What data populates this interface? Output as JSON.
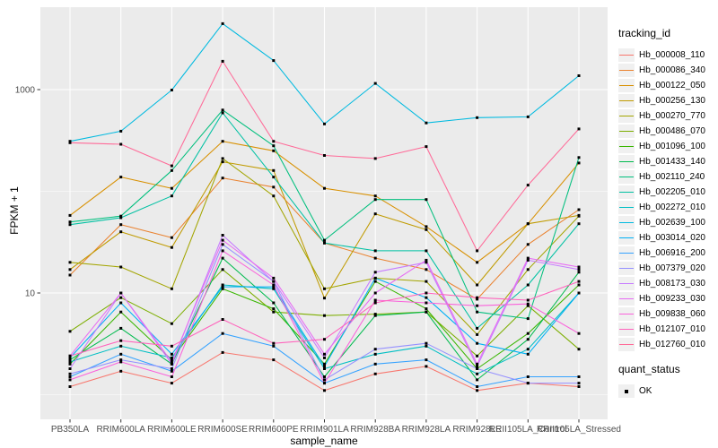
{
  "figure": {
    "background": "#ffffff",
    "panel_background": "#ebebeb",
    "grid_color": "#ffffff",
    "axis_text_color": "#4d4d4d",
    "tick_mark_color": "#333333",
    "point_color": "#000000"
  },
  "chart_data": {
    "type": "line",
    "title": "",
    "xlabel": "sample_name",
    "ylabel": "FPKM + 1",
    "y_scale": "log10",
    "y_major_ticks": [
      {
        "value": 10,
        "label": "10"
      },
      {
        "value": 1000,
        "label": "1000"
      }
    ],
    "y_minor_ticks": [
      1,
      100
    ],
    "ylim_log": [
      0.57,
      6600
    ],
    "grid": "on",
    "legend_position": "right",
    "point_shape": "filled-square",
    "categories": [
      "PB350LA",
      "RRIM600LA",
      "RRIM600LE",
      "RRIM600SE",
      "RRIM600PE",
      "RRIM901LA",
      "RRIM928BA",
      "RRIM928LA",
      "RRIM928LE",
      "RRII105LA_Control",
      "RRII105LA_Stressed"
    ],
    "series": [
      {
        "name": "Hb_000008_110",
        "color": "#F8766D",
        "values": [
          1.2,
          1.7,
          1.3,
          2.6,
          2.2,
          1.1,
          1.6,
          1.9,
          1.1,
          1.3,
          1.2
        ]
      },
      {
        "name": "Hb_000086_340",
        "color": "#EA8331",
        "values": [
          15,
          47,
          35,
          135,
          110,
          31,
          22,
          17,
          8.7,
          30,
          66
        ]
      },
      {
        "name": "Hb_000122_050",
        "color": "#D89000",
        "values": [
          58,
          138,
          107,
          310,
          250,
          107,
          90,
          45,
          20,
          48,
          190
        ]
      },
      {
        "name": "Hb_000256_130",
        "color": "#C09B00",
        "values": [
          17,
          40,
          28,
          195,
          160,
          8.9,
          60,
          42,
          12,
          48,
          58
        ]
      },
      {
        "name": "Hb_000270_770",
        "color": "#A3A500",
        "values": [
          20,
          18,
          11,
          210,
          90,
          11,
          14,
          13,
          3.9,
          17,
          57
        ]
      },
      {
        "name": "Hb_000486_070",
        "color": "#7CAE00",
        "values": [
          4.2,
          9.0,
          5.0,
          17,
          6.5,
          6.0,
          6.2,
          6.5,
          2.4,
          7.5,
          2.8
        ]
      },
      {
        "name": "Hb_001096_100",
        "color": "#39B600",
        "values": [
          2.0,
          6.5,
          2.2,
          11,
          7.0,
          2.0,
          13,
          7.0,
          1.8,
          4.0,
          12
        ]
      },
      {
        "name": "Hb_001433_140",
        "color": "#00BB4E",
        "values": [
          2.2,
          4.5,
          2.0,
          22,
          8.0,
          1.5,
          6.0,
          6.5,
          1.4,
          3.5,
          16
        ]
      },
      {
        "name": "Hb_002110_240",
        "color": "#00BF7D",
        "values": [
          50,
          57,
          160,
          630,
          280,
          33,
          83,
          83,
          6.5,
          5.6,
          215
        ]
      },
      {
        "name": "Hb_002205_010",
        "color": "#00C1A3",
        "values": [
          47,
          55,
          90,
          590,
          138,
          31,
          26,
          26,
          4.5,
          12,
          48
        ]
      },
      {
        "name": "Hb_002272_010",
        "color": "#00BFC4",
        "values": [
          2.1,
          3.0,
          2.3,
          12,
          11,
          1.8,
          2.5,
          3.0,
          1.6,
          2.8,
          10
        ]
      },
      {
        "name": "Hb_002639_100",
        "color": "#00BAE0",
        "values": [
          310,
          390,
          990,
          4450,
          1930,
          460,
          1150,
          470,
          530,
          540,
          1370
        ]
      },
      {
        "name": "Hb_003014_020",
        "color": "#00B0F6",
        "values": [
          2.3,
          8.0,
          2.5,
          11.5,
          11.5,
          1.9,
          14,
          9.0,
          3.2,
          2.5,
          10
        ]
      },
      {
        "name": "Hb_006916_200",
        "color": "#35A2FF",
        "values": [
          1.5,
          2.5,
          1.7,
          4.0,
          3.0,
          1.3,
          2.0,
          2.2,
          1.2,
          1.5,
          1.5
        ]
      },
      {
        "name": "Hb_007379_020",
        "color": "#9590FF",
        "values": [
          1.6,
          2.2,
          1.8,
          30,
          13,
          1.4,
          2.8,
          3.2,
          1.8,
          1.3,
          1.3
        ]
      },
      {
        "name": "Hb_008173_030",
        "color": "#C77CFF",
        "values": [
          1.8,
          10,
          2.0,
          37,
          13,
          2.3,
          16,
          20,
          1.9,
          21,
          17
        ]
      },
      {
        "name": "Hb_009233_030",
        "color": "#E76BF3",
        "values": [
          2.4,
          10,
          2.1,
          33,
          14,
          2.5,
          10,
          21,
          2.0,
          22,
          18
        ]
      },
      {
        "name": "Hb_009838_060",
        "color": "#FA62DB",
        "values": [
          1.4,
          2.1,
          1.5,
          26,
          12,
          1.3,
          8.5,
          8.0,
          7.5,
          7.8,
          4.0
        ]
      },
      {
        "name": "Hb_012107_010",
        "color": "#FF62BC",
        "values": [
          2.4,
          3.4,
          3.0,
          5.5,
          3.2,
          3.5,
          8.0,
          10,
          9.0,
          8.5,
          13
        ]
      },
      {
        "name": "Hb_012760_010",
        "color": "#FF6A98",
        "values": [
          300,
          290,
          178,
          1900,
          310,
          225,
          210,
          275,
          26,
          115,
          410
        ]
      }
    ],
    "legend": {
      "tracking_title": "tracking_id",
      "quant_title": "quant_status",
      "quant_items": [
        {
          "label": "OK"
        }
      ]
    }
  }
}
